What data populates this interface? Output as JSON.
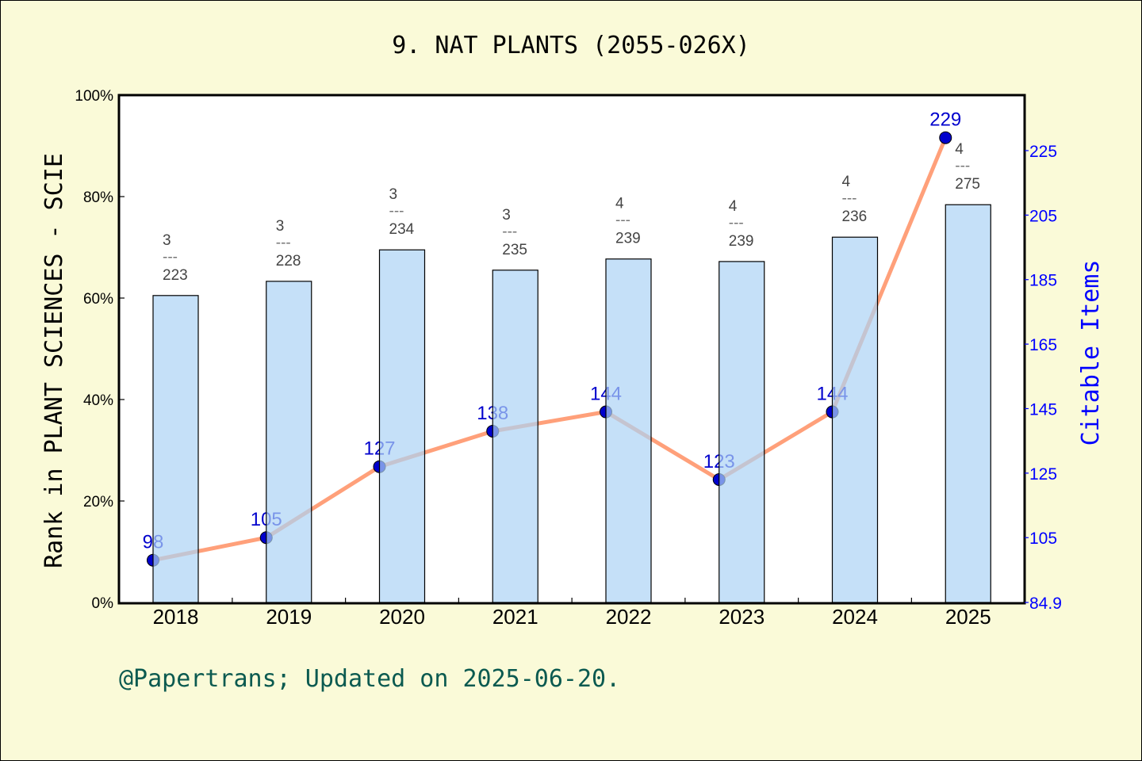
{
  "chart_data": {
    "type": "bar+line",
    "title": "9. NAT PLANTS (2055-026X)",
    "categories": [
      "2018",
      "2019",
      "2020",
      "2021",
      "2022",
      "2023",
      "2024",
      "2025"
    ],
    "series": [
      {
        "name": "Rank percentile in PLANT SCIENCES - SCIE",
        "type": "bar",
        "axis": "left",
        "values": [
          60.5,
          63.3,
          69.5,
          65.5,
          67.7,
          67.2,
          72.0,
          78.4
        ],
        "annotations": [
          {
            "rank": "3",
            "total": "223"
          },
          {
            "rank": "3",
            "total": "228"
          },
          {
            "rank": "3",
            "total": "234"
          },
          {
            "rank": "3",
            "total": "235"
          },
          {
            "rank": "4",
            "total": "239"
          },
          {
            "rank": "4",
            "total": "239"
          },
          {
            "rank": "4",
            "total": "236"
          },
          {
            "rank": "4",
            "total": "275"
          }
        ]
      },
      {
        "name": "Citable Items",
        "type": "line",
        "axis": "right",
        "values": [
          98,
          105,
          127,
          138,
          144,
          123,
          144,
          229
        ]
      }
    ],
    "xlabel": "",
    "ylabel": "Rank in PLANT SCIENCES - SCIE",
    "ylabel_right": "Citable Items",
    "ylim": [
      0,
      100
    ],
    "ylim_right": [
      84.9,
      242.2
    ],
    "yticks": [
      "0%",
      "20%",
      "40%",
      "60%",
      "80%",
      "100%"
    ],
    "yticks_right": [
      "84.9",
      "105",
      "125",
      "145",
      "165",
      "185",
      "205",
      "225"
    ],
    "grid": false,
    "legend": null
  },
  "footer": "@Papertrans; Updated on 2025-06-20.",
  "colors": {
    "background": "#fafad8",
    "plot_bg": "#ffffff",
    "bar_fill": "#c5e0f7",
    "line": "#ffa07a",
    "marker": "#0000cd",
    "right_axis": "#0000ff",
    "annotation": "#444444",
    "footer": "#0b5a50"
  }
}
